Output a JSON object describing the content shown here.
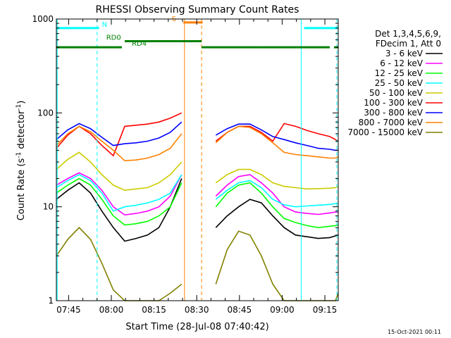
{
  "chart_data": {
    "type": "line",
    "title": "RHESSI Observing Summary Count Rates",
    "xlabel": "Start Time (28-Jul-08 07:40:42)",
    "ylabel_main": "Count Rate (s",
    "ylabel_sup1": "-1",
    "ylabel_mid": " detector",
    "ylabel_sup2": "-1",
    "ylabel_end": ")",
    "yscale": "log",
    "ylim": [
      1,
      1000
    ],
    "y_ticks": [
      {
        "value": 1,
        "label": "1"
      },
      {
        "value": 10,
        "label": "10"
      },
      {
        "value": 100,
        "label": "100"
      },
      {
        "value": 1000,
        "label": "1000"
      }
    ],
    "xlim_minutes": [
      0,
      99
    ],
    "x_ticks": [
      {
        "minute": 4.3,
        "label": "07:45"
      },
      {
        "minute": 19.3,
        "label": "08:00"
      },
      {
        "minute": 34.3,
        "label": "08:15"
      },
      {
        "minute": 49.3,
        "label": "08:30"
      },
      {
        "minute": 64.3,
        "label": "08:45"
      },
      {
        "minute": 79.3,
        "label": "09:00"
      },
      {
        "minute": 94.3,
        "label": "09:15"
      }
    ],
    "legend_header": [
      "Det 1,3,4,5,6,9,",
      "FDecim 1, Att 0"
    ],
    "series": [
      {
        "name": "3 - 6 keV",
        "color": "#000000",
        "values": [
          12,
          15,
          18,
          14,
          9,
          6,
          4.3,
          4.6,
          5,
          6,
          10,
          20,
          null,
          null,
          6,
          8,
          10,
          12,
          11,
          8,
          6,
          5,
          4.8,
          4.6,
          4.7,
          4.9,
          5.0
        ]
      },
      {
        "name": "6 - 12 keV",
        "color": "#ff00ff",
        "values": [
          17,
          20,
          23,
          20,
          15,
          10,
          8.2,
          8.5,
          9,
          10,
          13,
          22,
          null,
          null,
          13,
          17,
          21,
          22,
          18,
          14,
          10,
          8.8,
          8.5,
          8.3,
          8.6,
          8.8,
          8.7
        ]
      },
      {
        "name": "12 - 25 keV",
        "color": "#00ff00",
        "values": [
          14,
          17,
          20,
          17,
          12,
          8,
          6.4,
          6.6,
          7,
          8,
          10,
          18,
          null,
          null,
          10,
          14,
          17,
          18,
          14,
          10,
          7.5,
          6.8,
          6.3,
          6.0,
          6.2,
          6.3,
          6.4
        ]
      },
      {
        "name": "25 - 50 keV",
        "color": "#00ffff",
        "values": [
          16,
          19,
          22,
          19,
          14,
          9,
          10,
          10.4,
          11,
          12,
          14,
          22,
          null,
          null,
          12,
          15,
          18,
          19,
          16,
          12,
          10.5,
          10,
          10.2,
          10.4,
          10.6,
          10.8,
          11
        ]
      },
      {
        "name": "50 - 100 keV",
        "color": "#cccc00",
        "values": [
          25,
          32,
          38,
          30,
          22,
          17,
          15,
          15.5,
          16,
          18,
          22,
          30,
          null,
          null,
          18,
          22,
          25,
          25,
          22,
          18,
          16.5,
          16,
          15.5,
          15.6,
          15.8,
          16,
          16.5
        ]
      },
      {
        "name": "100 - 300 keV",
        "color": "#ff0000",
        "values": [
          42,
          58,
          72,
          60,
          45,
          35,
          72,
          74,
          76,
          80,
          88,
          100,
          null,
          null,
          50,
          62,
          72,
          72,
          62,
          50,
          77,
          72,
          65,
          60,
          56,
          52,
          50
        ]
      },
      {
        "name": "300 - 800 keV",
        "color": "#0000ff",
        "values": [
          52,
          66,
          77,
          68,
          55,
          45,
          47,
          48,
          50,
          54,
          62,
          80,
          null,
          null,
          58,
          68,
          76,
          76,
          66,
          56,
          52,
          48,
          45,
          42,
          41,
          40,
          40
        ]
      },
      {
        "name": "800 - 7000 keV",
        "color": "#ff8000",
        "values": [
          45,
          60,
          72,
          63,
          50,
          40,
          31,
          31.5,
          33,
          36,
          42,
          60,
          null,
          null,
          48,
          62,
          72,
          70,
          60,
          48,
          38,
          36,
          35,
          34,
          33,
          33,
          34
        ]
      },
      {
        "name": "7000 - 15000 keV",
        "color": "#808000",
        "values": [
          3,
          4.5,
          6,
          4.5,
          2.5,
          1.3,
          1.0,
          1.0,
          1.0,
          1.0,
          1.2,
          1.5,
          null,
          null,
          1.5,
          3.5,
          5.5,
          5,
          3,
          1.5,
          1.0,
          1.0,
          1.0,
          1.0,
          1.0,
          1.0,
          1.2
        ]
      }
    ],
    "series_x_minutes": [
      0,
      4,
      8,
      12,
      16,
      20,
      24,
      28,
      32,
      36,
      40,
      44,
      48,
      52,
      56,
      60,
      64,
      68,
      72,
      76,
      80,
      84,
      88,
      92,
      96,
      98,
      99
    ],
    "flags": [
      {
        "label": "N",
        "color": "#00ffff",
        "level": 800,
        "segments": [
          [
            0,
            15
          ],
          [
            87,
            99
          ]
        ],
        "label_at": 16
      },
      {
        "label": "RD0",
        "color": "#008000",
        "level": 580,
        "segments": [
          [
            24,
            51
          ]
        ],
        "label_at": 17.5
      },
      {
        "label": "RD4",
        "color": "#008000",
        "level": 500,
        "segments": [
          [
            0,
            23
          ],
          [
            51,
            72
          ],
          [
            72,
            96
          ],
          [
            97.5,
            99
          ]
        ],
        "label_at": 26.5
      },
      {
        "label": "S",
        "color": "#ff8000",
        "level": 920,
        "segments": [
          [
            44.6,
            51.4
          ]
        ],
        "label_at": 40.5
      }
    ],
    "vlines": [
      {
        "minute": 0.3,
        "color": "#00ffff",
        "style": "solid"
      },
      {
        "minute": 14.3,
        "color": "#00ffff",
        "style": "dashed"
      },
      {
        "minute": 45,
        "color": "#ff8000",
        "style": "solid"
      },
      {
        "minute": 51,
        "color": "#ff8000",
        "style": "dashed"
      },
      {
        "minute": 86,
        "color": "#00ffff",
        "style": "solid"
      },
      {
        "minute": 98.5,
        "color": "#00ffff",
        "style": "dashed"
      }
    ],
    "footer_date": "15-Oct-2021 00:11"
  }
}
